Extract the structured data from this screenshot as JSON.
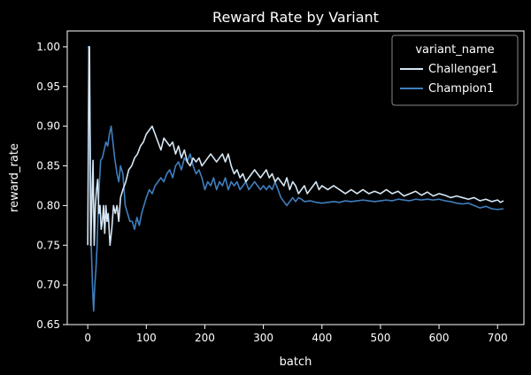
{
  "chart_data": {
    "type": "line",
    "title": "Reward Rate by Variant",
    "xlabel": "batch",
    "ylabel": "reward_rate",
    "xlim": [
      -35,
      745
    ],
    "ylim": [
      0.65,
      1.02
    ],
    "xticks": [
      "0",
      "100",
      "200",
      "300",
      "400",
      "500",
      "600",
      "700"
    ],
    "yticks": [
      "0.65",
      "0.70",
      "0.75",
      "0.80",
      "0.85",
      "0.90",
      "0.95",
      "1.00"
    ],
    "grid": false,
    "legend": {
      "title": "variant_name",
      "position": "top-right"
    },
    "series": [
      {
        "name": "Challenger1",
        "color": "#d6e7f5",
        "x": [
          0,
          2,
          3,
          5,
          7,
          9,
          11,
          13,
          15,
          17,
          19,
          21,
          23,
          25,
          27,
          29,
          31,
          33,
          35,
          38,
          41,
          44,
          47,
          50,
          53,
          56,
          60,
          65,
          70,
          75,
          80,
          85,
          90,
          95,
          100,
          105,
          110,
          115,
          120,
          125,
          130,
          135,
          140,
          145,
          150,
          155,
          160,
          165,
          170,
          175,
          180,
          185,
          190,
          195,
          200,
          205,
          210,
          215,
          220,
          225,
          230,
          235,
          240,
          245,
          250,
          255,
          260,
          265,
          270,
          275,
          280,
          285,
          290,
          295,
          300,
          305,
          310,
          315,
          320,
          325,
          330,
          335,
          340,
          345,
          350,
          355,
          360,
          365,
          370,
          375,
          380,
          385,
          390,
          395,
          400,
          410,
          420,
          430,
          440,
          450,
          460,
          470,
          480,
          490,
          500,
          510,
          520,
          530,
          540,
          550,
          560,
          570,
          580,
          590,
          600,
          610,
          620,
          630,
          640,
          650,
          660,
          670,
          680,
          690,
          700,
          705,
          710
        ],
        "y": [
          0.75,
          1.0,
          1.0,
          0.75,
          0.8,
          0.857,
          0.75,
          0.8,
          0.82,
          0.833,
          0.79,
          0.8,
          0.77,
          0.78,
          0.8,
          0.765,
          0.8,
          0.78,
          0.79,
          0.75,
          0.77,
          0.8,
          0.79,
          0.8,
          0.78,
          0.81,
          0.82,
          0.83,
          0.845,
          0.85,
          0.86,
          0.865,
          0.875,
          0.88,
          0.89,
          0.895,
          0.9,
          0.89,
          0.88,
          0.87,
          0.885,
          0.88,
          0.875,
          0.88,
          0.865,
          0.875,
          0.86,
          0.87,
          0.855,
          0.85,
          0.86,
          0.855,
          0.86,
          0.85,
          0.855,
          0.86,
          0.865,
          0.86,
          0.855,
          0.86,
          0.865,
          0.855,
          0.865,
          0.85,
          0.84,
          0.845,
          0.835,
          0.84,
          0.83,
          0.835,
          0.84,
          0.845,
          0.84,
          0.835,
          0.84,
          0.845,
          0.835,
          0.84,
          0.83,
          0.835,
          0.83,
          0.825,
          0.835,
          0.82,
          0.83,
          0.825,
          0.815,
          0.82,
          0.825,
          0.815,
          0.82,
          0.825,
          0.83,
          0.82,
          0.825,
          0.82,
          0.825,
          0.82,
          0.815,
          0.82,
          0.815,
          0.82,
          0.815,
          0.818,
          0.815,
          0.82,
          0.815,
          0.818,
          0.812,
          0.815,
          0.818,
          0.813,
          0.817,
          0.812,
          0.815,
          0.813,
          0.81,
          0.812,
          0.81,
          0.808,
          0.81,
          0.806,
          0.808,
          0.805,
          0.807,
          0.804,
          0.806
        ]
      },
      {
        "name": "Champion1",
        "color": "#3f7fbf",
        "x": [
          0,
          2,
          4,
          6,
          8,
          10,
          12,
          14,
          16,
          18,
          20,
          22,
          25,
          28,
          31,
          34,
          37,
          40,
          43,
          46,
          50,
          53,
          56,
          60,
          64,
          68,
          72,
          76,
          80,
          84,
          88,
          92,
          96,
          100,
          105,
          110,
          115,
          120,
          125,
          130,
          135,
          140,
          145,
          150,
          155,
          160,
          165,
          170,
          175,
          180,
          185,
          190,
          195,
          200,
          205,
          210,
          215,
          220,
          225,
          230,
          235,
          240,
          245,
          250,
          255,
          260,
          265,
          270,
          275,
          280,
          285,
          290,
          295,
          300,
          305,
          310,
          315,
          320,
          325,
          330,
          335,
          340,
          345,
          350,
          355,
          360,
          365,
          370,
          380,
          390,
          400,
          410,
          420,
          430,
          440,
          450,
          460,
          470,
          480,
          490,
          500,
          510,
          520,
          530,
          540,
          550,
          560,
          570,
          580,
          590,
          600,
          610,
          620,
          630,
          640,
          650,
          660,
          670,
          680,
          690,
          700,
          710
        ],
        "y": [
          1.0,
          1.0,
          0.9,
          0.75,
          0.7,
          0.667,
          0.7,
          0.72,
          0.75,
          0.8,
          0.83,
          0.857,
          0.86,
          0.87,
          0.88,
          0.875,
          0.89,
          0.9,
          0.88,
          0.86,
          0.84,
          0.83,
          0.85,
          0.84,
          0.8,
          0.79,
          0.78,
          0.78,
          0.77,
          0.785,
          0.775,
          0.79,
          0.8,
          0.81,
          0.82,
          0.815,
          0.825,
          0.83,
          0.835,
          0.83,
          0.84,
          0.845,
          0.835,
          0.85,
          0.855,
          0.845,
          0.86,
          0.855,
          0.865,
          0.85,
          0.84,
          0.845,
          0.835,
          0.82,
          0.83,
          0.825,
          0.835,
          0.82,
          0.83,
          0.825,
          0.835,
          0.82,
          0.83,
          0.825,
          0.83,
          0.82,
          0.825,
          0.83,
          0.82,
          0.825,
          0.83,
          0.825,
          0.82,
          0.825,
          0.82,
          0.825,
          0.82,
          0.83,
          0.82,
          0.81,
          0.805,
          0.8,
          0.805,
          0.81,
          0.805,
          0.81,
          0.808,
          0.805,
          0.806,
          0.804,
          0.803,
          0.804,
          0.805,
          0.804,
          0.806,
          0.805,
          0.806,
          0.807,
          0.806,
          0.805,
          0.806,
          0.807,
          0.806,
          0.808,
          0.807,
          0.806,
          0.808,
          0.807,
          0.808,
          0.807,
          0.808,
          0.806,
          0.805,
          0.803,
          0.802,
          0.803,
          0.8,
          0.797,
          0.799,
          0.796,
          0.795,
          0.796
        ]
      }
    ]
  }
}
